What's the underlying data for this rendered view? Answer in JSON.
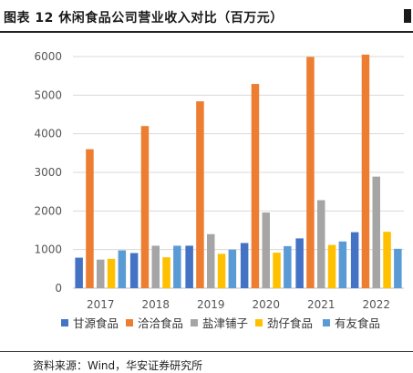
{
  "figure": {
    "title": "图表 12  休闲食品公司营业收入对比（百万元）",
    "source": "资料来源：Wind，华安证券研究所"
  },
  "colors": {
    "甘源食品": "#4472c4",
    "洽洽食品": "#ed7d31",
    "盐津铺子": "#a5a5a5",
    "劲仔食品": "#ffc000",
    "有友食品": "#5b9bd5",
    "grid": "#d9d9d9",
    "axis": "#bfbfbf"
  },
  "chart_data": {
    "type": "bar",
    "title": "",
    "xlabel": "",
    "ylabel": "",
    "categories": [
      "2017",
      "2018",
      "2019",
      "2020",
      "2021",
      "2022"
    ],
    "ylim": [
      0,
      6000
    ],
    "yticks": [
      0,
      1000,
      2000,
      3000,
      4000,
      5000,
      6000
    ],
    "grid": true,
    "legend_position": "bottom",
    "series": [
      {
        "name": "甘源食品",
        "values": [
          790,
          910,
          1100,
          1170,
          1290,
          1450
        ]
      },
      {
        "name": "洽洽食品",
        "values": [
          3600,
          4200,
          4840,
          5290,
          5990,
          6050
        ]
      },
      {
        "name": "盐津铺子",
        "values": [
          740,
          1100,
          1400,
          1960,
          2280,
          2890
        ]
      },
      {
        "name": "劲仔食品",
        "values": [
          760,
          800,
          890,
          920,
          1120,
          1460
        ]
      },
      {
        "name": "有友食品",
        "values": [
          980,
          1100,
          1000,
          1090,
          1210,
          1020
        ]
      }
    ]
  }
}
